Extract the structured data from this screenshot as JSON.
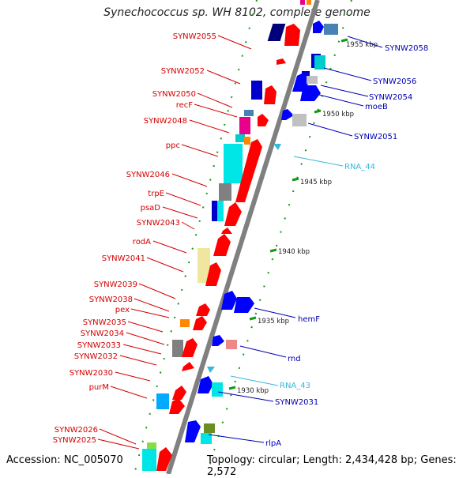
{
  "title": "Synechococcus sp. WH 8102, complete genome",
  "accession": "Accession: NC_005070",
  "topology": "Topology: circular; Length: 2,434,428 bp; Genes: 2,572",
  "colors": {
    "left_labels": "#d40000",
    "right_labels": "#0000b4",
    "rna_labels": "#36b9d9",
    "forward_gene": "#ff0000",
    "reverse_gene": "#0000ff",
    "backbone": "#808080",
    "tick": "#119911"
  },
  "ticks": [
    {
      "label": "1955 kbp"
    },
    {
      "label": "1950 kbp"
    },
    {
      "label": "1945 kbp"
    },
    {
      "label": "1940 kbp"
    },
    {
      "label": "1935 kbp"
    },
    {
      "label": "1930 kbp"
    }
  ],
  "left_genes": [
    {
      "label": "SYNW2055"
    },
    {
      "label": "SYNW2052"
    },
    {
      "label": "SYNW2050"
    },
    {
      "label": "recF"
    },
    {
      "label": "SYNW2048"
    },
    {
      "label": "ppc"
    },
    {
      "label": "SYNW2046"
    },
    {
      "label": "trpE"
    },
    {
      "label": "psaD"
    },
    {
      "label": "SYNW2043"
    },
    {
      "label": "rodA"
    },
    {
      "label": "SYNW2041"
    },
    {
      "label": "SYNW2039"
    },
    {
      "label": "SYNW2038"
    },
    {
      "label": "pex"
    },
    {
      "label": "SYNW2035"
    },
    {
      "label": "SYNW2034"
    },
    {
      "label": "SYNW2033"
    },
    {
      "label": "SYNW2032"
    },
    {
      "label": "SYNW2030"
    },
    {
      "label": "purM"
    },
    {
      "label": "SYNW2026"
    },
    {
      "label": "SYNW2025"
    }
  ],
  "right_genes": [
    {
      "label": "SYNW2058"
    },
    {
      "label": "SYNW2056"
    },
    {
      "label": "SYNW2054"
    },
    {
      "label": "moeB"
    },
    {
      "label": "SYNW2051"
    },
    {
      "label": "RNA_44",
      "rna": true
    },
    {
      "label": "hemF"
    },
    {
      "label": "rnd"
    },
    {
      "label": "RNA_43",
      "rna": true
    },
    {
      "label": "SYNW2031"
    },
    {
      "label": "rlpA"
    }
  ]
}
